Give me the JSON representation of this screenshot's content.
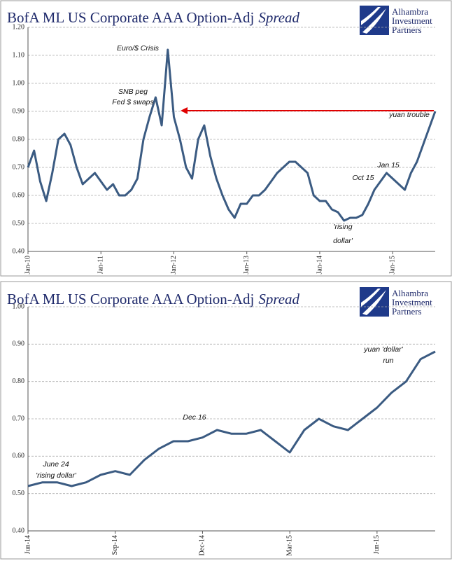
{
  "chart_data": [
    {
      "type": "line",
      "title": "BofA ML US Corporate AAA Option-Adj",
      "title_emphasis": "Spread",
      "logo": [
        "Alhambra",
        "Investment",
        "Partners"
      ],
      "categories": [
        "Jan-10",
        null,
        null,
        null,
        null,
        null,
        null,
        null,
        null,
        null,
        null,
        null,
        "Jan-11",
        null,
        null,
        null,
        null,
        null,
        null,
        null,
        null,
        null,
        null,
        null,
        "Jan-12",
        null,
        null,
        null,
        null,
        null,
        null,
        null,
        null,
        null,
        null,
        null,
        "Jan-13",
        null,
        null,
        null,
        null,
        null,
        null,
        null,
        null,
        null,
        null,
        null,
        "Jan-14",
        null,
        null,
        null,
        null,
        null,
        null,
        null,
        null,
        null,
        null,
        null,
        "Jan-15",
        null,
        null,
        null,
        null,
        null,
        null,
        null
      ],
      "series": [
        {
          "name": "BofA ML US Corporate AAA Option-Adj Spread",
          "color": "#3b5b82",
          "values": [
            0.7,
            0.76,
            0.65,
            0.58,
            0.68,
            0.8,
            0.82,
            0.78,
            0.7,
            0.64,
            0.66,
            0.68,
            0.65,
            0.62,
            0.64,
            0.6,
            0.6,
            0.62,
            0.66,
            0.8,
            0.88,
            0.95,
            0.85,
            1.12,
            0.88,
            0.8,
            0.7,
            0.66,
            0.8,
            0.85,
            0.74,
            0.66,
            0.6,
            0.55,
            0.52,
            0.57,
            0.57,
            0.6,
            0.6,
            0.62,
            0.65,
            0.68,
            0.7,
            0.72,
            0.72,
            0.7,
            0.68,
            0.6,
            0.58,
            0.58,
            0.55,
            0.54,
            0.51,
            0.52,
            0.52,
            0.53,
            0.57,
            0.62,
            0.65,
            0.68,
            0.66,
            0.64,
            0.62,
            0.68,
            0.72,
            0.78,
            0.84,
            0.9
          ]
        }
      ],
      "ylim": [
        0.4,
        1.2
      ],
      "yticks": [
        {
          "value": 0.4,
          "label": "0.40"
        },
        {
          "value": 0.5,
          "label": "0.50"
        },
        {
          "value": 0.6,
          "label": "0.60"
        },
        {
          "value": 0.7,
          "label": "0.70"
        },
        {
          "value": 0.8,
          "label": "0.80"
        },
        {
          "value": 0.9,
          "label": "0.90"
        },
        {
          "value": 1.0,
          "label": "1.00"
        },
        {
          "value": 1.1,
          "label": "1.10"
        },
        {
          "value": 1.2,
          "label": "1.20"
        }
      ],
      "grid": true,
      "annotations": [
        "Euro/$ Crisis",
        "SNB peg",
        "Fed $ swaps",
        "yuan trouble",
        "Jan 15",
        "Oct 15",
        "'rising",
        "dollar'"
      ]
    },
    {
      "type": "line",
      "title": "BofA ML US Corporate AAA Option-Adj",
      "title_emphasis": "Spread",
      "logo": [
        "Alhambra",
        "Investment",
        "Partners"
      ],
      "categories": [
        "Jun-14",
        null,
        null,
        null,
        null,
        null,
        "Sep-14",
        null,
        null,
        null,
        null,
        null,
        "Dec-14",
        null,
        null,
        null,
        null,
        null,
        "Mar-15",
        null,
        null,
        null,
        null,
        null,
        "Jun-15",
        null,
        null,
        null,
        null
      ],
      "series": [
        {
          "name": "BofA ML US Corporate AAA Option-Adj Spread",
          "color": "#3b5b82",
          "values": [
            0.52,
            0.53,
            0.53,
            0.52,
            0.53,
            0.55,
            0.56,
            0.55,
            0.59,
            0.62,
            0.64,
            0.64,
            0.65,
            0.67,
            0.66,
            0.66,
            0.67,
            0.64,
            0.61,
            0.67,
            0.7,
            0.68,
            0.67,
            0.7,
            0.73,
            0.77,
            0.8,
            0.86,
            0.88
          ]
        }
      ],
      "ylim": [
        0.4,
        1.0
      ],
      "yticks": [
        {
          "value": 0.4,
          "label": "0.40"
        },
        {
          "value": 0.5,
          "label": "0.50"
        },
        {
          "value": 0.6,
          "label": "0.60"
        },
        {
          "value": 0.7,
          "label": "0.70"
        },
        {
          "value": 0.8,
          "label": "0.80"
        },
        {
          "value": 0.9,
          "label": "0.90"
        },
        {
          "value": 1.0,
          "label": "1.00"
        }
      ],
      "grid": true,
      "annotations": [
        "Dec 16",
        "June 24",
        "'rising dollar'",
        "yuan 'dollar'",
        "run"
      ]
    }
  ]
}
